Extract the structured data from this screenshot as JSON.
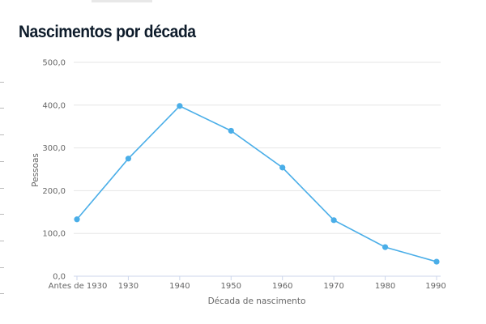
{
  "title": "Nascimentos por década",
  "chart_data": {
    "type": "line",
    "title": "Nascimentos por década",
    "xlabel": "Década de nascimento",
    "ylabel": "Pessoas",
    "categories": [
      "Antes de 1930",
      "1930",
      "1940",
      "1950",
      "1960",
      "1970",
      "1980",
      "1990"
    ],
    "series": [
      {
        "values": [
          133,
          275,
          398,
          340,
          254,
          131,
          68,
          34
        ],
        "color": "#4aaee8"
      }
    ],
    "ylim": [
      0,
      500
    ],
    "yticks": [
      "0,0",
      "100,0",
      "200,0",
      "300,0",
      "400,0",
      "500,0"
    ],
    "grid": true,
    "legend": "none"
  }
}
